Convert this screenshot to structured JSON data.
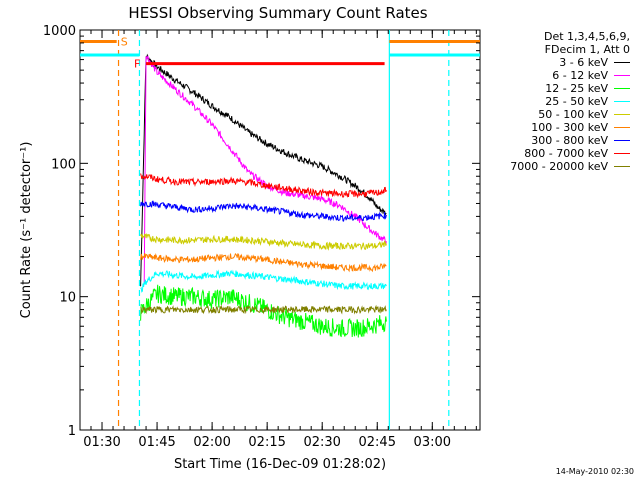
{
  "chart_data": {
    "type": "line",
    "title": "HESSI Observing Summary Count Rates",
    "xlabel": "Start Time (16-Dec-09 01:28:02)",
    "ylabel": "Count Rate (s⁻¹ detector⁻¹)",
    "xlim": [
      84,
      193
    ],
    "ylim": [
      1,
      1000
    ],
    "yscale": "log",
    "x_unit": "minutes after 00:00 UT",
    "x_ticks": [
      {
        "value": 90,
        "label": "01:30"
      },
      {
        "value": 105,
        "label": "01:45"
      },
      {
        "value": 120,
        "label": "02:00"
      },
      {
        "value": 135,
        "label": "02:15"
      },
      {
        "value": 150,
        "label": "02:30"
      },
      {
        "value": 165,
        "label": "02:45"
      },
      {
        "value": 180,
        "label": "03:00"
      }
    ],
    "y_ticks": [
      {
        "value": 1,
        "label": "1"
      },
      {
        "value": 10,
        "label": "10"
      },
      {
        "value": 100,
        "label": "100"
      },
      {
        "value": 1000,
        "label": "1000"
      }
    ],
    "legend_header": [
      "Det 1,3,4,5,6,9,",
      "FDecim 1, Att 0"
    ],
    "legend_position": "right",
    "series": [
      {
        "name": "3 - 6 keV",
        "color": "#000000",
        "x": [
          100.5,
          102,
          105,
          110,
          115,
          120,
          125,
          130,
          135,
          140,
          145,
          150,
          155,
          160,
          163,
          165,
          167.5
        ],
        "y": [
          12,
          640,
          530,
          420,
          340,
          270,
          220,
          170,
          140,
          120,
          105,
          95,
          80,
          65,
          55,
          47,
          42
        ]
      },
      {
        "name": "6 - 12 keV",
        "color": "#ff00ff",
        "x": [
          101.5,
          102,
          105,
          110,
          115,
          120,
          125,
          130,
          135,
          140,
          145,
          150,
          155,
          160,
          163,
          165,
          167.5
        ],
        "y": [
          12,
          650,
          480,
          360,
          270,
          195,
          130,
          85,
          68,
          60,
          57,
          54,
          48,
          38,
          32,
          29,
          26
        ]
      },
      {
        "name": "12 - 25 keV",
        "color": "#00ff00",
        "x": [
          100.5,
          102,
          105,
          110,
          115,
          120,
          125,
          130,
          135,
          140,
          145,
          150,
          155,
          160,
          165,
          167.5
        ],
        "y": [
          7.5,
          8.5,
          10.5,
          10,
          10,
          9.5,
          10,
          9,
          8,
          7,
          6.5,
          6,
          5.8,
          5.8,
          6.2,
          6.5
        ]
      },
      {
        "name": "25 - 50 keV",
        "color": "#00ffff",
        "x": [
          100.5,
          102,
          105,
          110,
          115,
          120,
          125,
          130,
          135,
          140,
          145,
          150,
          155,
          160,
          165,
          167.5
        ],
        "y": [
          11,
          13,
          15,
          14.5,
          14,
          14.5,
          15,
          14.5,
          14,
          13.5,
          13,
          12.5,
          12,
          12,
          12,
          12
        ]
      },
      {
        "name": "50 - 100 keV",
        "color": "#cccc00",
        "x": [
          100.5,
          102,
          105,
          110,
          115,
          120,
          125,
          130,
          135,
          140,
          145,
          150,
          155,
          160,
          165,
          167.5
        ],
        "y": [
          29,
          28,
          27,
          26.5,
          26.5,
          27,
          27,
          26.5,
          26,
          25,
          24.5,
          24,
          24,
          24,
          24,
          25
        ]
      },
      {
        "name": "100 - 300 keV",
        "color": "#ff8000",
        "x": [
          100.5,
          102,
          105,
          110,
          115,
          120,
          125,
          130,
          135,
          140,
          145,
          150,
          155,
          160,
          165,
          167.5
        ],
        "y": [
          20,
          20,
          19.5,
          19,
          19,
          19.5,
          20,
          19.5,
          19,
          18,
          17.5,
          17,
          16.5,
          16.5,
          16.5,
          17
        ]
      },
      {
        "name": "300 - 800 keV",
        "color": "#0000ff",
        "x": [
          100.5,
          102,
          105,
          110,
          115,
          120,
          125,
          130,
          135,
          140,
          145,
          150,
          155,
          160,
          165,
          167.5
        ],
        "y": [
          50,
          50,
          49,
          47,
          45,
          46,
          48,
          47,
          45,
          43,
          41,
          40,
          39,
          39,
          40,
          41
        ]
      },
      {
        "name": "800 - 7000 keV",
        "color": "#ff0000",
        "x": [
          100.5,
          102,
          105,
          110,
          115,
          120,
          125,
          130,
          135,
          140,
          145,
          150,
          155,
          160,
          165,
          167.5
        ],
        "y": [
          80,
          80,
          76,
          73,
          72,
          73,
          74,
          72,
          68,
          65,
          62,
          60,
          59,
          59,
          60,
          63
        ]
      },
      {
        "name": "7000 - 20000 keV",
        "color": "#808000",
        "x": [
          100.5,
          102,
          105,
          110,
          115,
          120,
          125,
          130,
          135,
          140,
          145,
          150,
          155,
          160,
          165,
          167.5
        ],
        "y": [
          8,
          8,
          8,
          8,
          8,
          8,
          8,
          8,
          8,
          8,
          8,
          8,
          8,
          8,
          8,
          8
        ]
      }
    ],
    "flag_lines": [
      {
        "label": "F",
        "color": "#ff0000",
        "x": [
          102,
          167
        ],
        "y": 560
      },
      {
        "label": "S",
        "color": "#ff8000",
        "x": [
          84,
          94
        ],
        "y": 820
      }
    ],
    "vertical_markers": [
      {
        "x": 94.5,
        "color": "#ff8000",
        "style": "dashed"
      },
      {
        "x": 100.2,
        "color": "#00ffff",
        "style": "dashed"
      },
      {
        "x": 168.3,
        "color": "#00ffff",
        "style": "solid"
      },
      {
        "x": 184.5,
        "color": "#00ffff",
        "style": "dashed"
      }
    ]
  },
  "footer_date": "14-May-2010 02:30"
}
